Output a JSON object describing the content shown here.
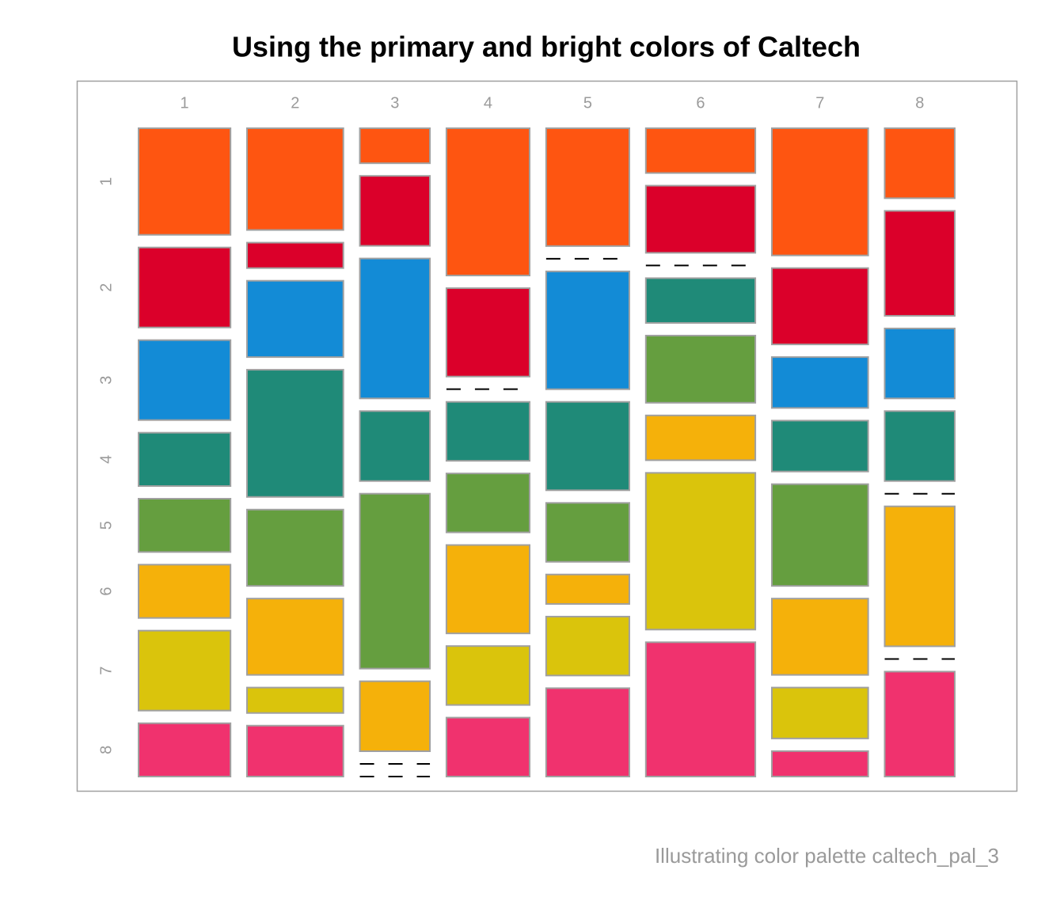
{
  "chart_data": {
    "type": "mosaic",
    "title": "Using the primary and bright colors of Caltech",
    "caption": "Illustrating color palette caltech_pal_3",
    "columns": [
      "1",
      "2",
      "3",
      "4",
      "5",
      "6",
      "7",
      "8"
    ],
    "rows": [
      "1",
      "2",
      "3",
      "4",
      "5",
      "6",
      "7",
      "8"
    ],
    "colors": [
      "#fe5511",
      "#db002a",
      "#138bd6",
      "#1f8a78",
      "#659e3f",
      "#f5b10a",
      "#dac40c",
      "#f0326e"
    ],
    "counts": [
      [
        4,
        3,
        3,
        2,
        2,
        2,
        3,
        2
      ],
      [
        4,
        1,
        3,
        5,
        3,
        3,
        1,
        2
      ],
      [
        1,
        2,
        4,
        2,
        5,
        2,
        0,
        0
      ],
      [
        5,
        3,
        0,
        2,
        2,
        3,
        2,
        2
      ],
      [
        4,
        0,
        4,
        3,
        2,
        1,
        2,
        3
      ],
      [
        2,
        3,
        0,
        2,
        3,
        2,
        7,
        6
      ],
      [
        5,
        3,
        2,
        2,
        4,
        3,
        2,
        1
      ],
      [
        2,
        3,
        2,
        2,
        0,
        4,
        0,
        3
      ]
    ]
  }
}
